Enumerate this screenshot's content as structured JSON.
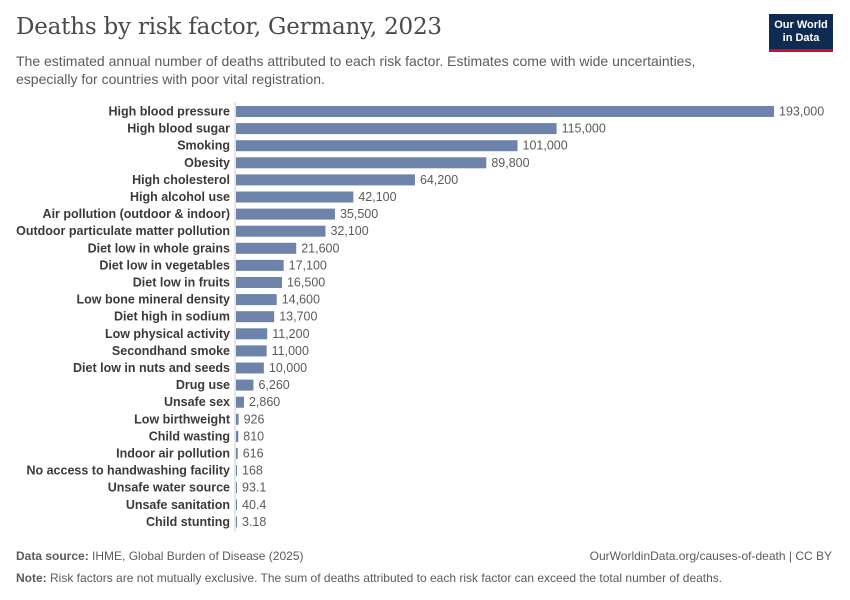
{
  "header": {
    "title": "Deaths by risk factor, Germany, 2023",
    "subtitle": "The estimated annual number of deaths attributed to each risk factor. Estimates come with wide uncertainties, especially for countries with poor vital registration.",
    "logo_line1": "Our World",
    "logo_line2": "in Data"
  },
  "footer": {
    "source_label": "Data source:",
    "source_text": "IHME, Global Burden of Disease (2025)",
    "url_text": "OurWorldinData.org/causes-of-death | CC BY",
    "note_label": "Note:",
    "note_text": "Risk factors are not mutually exclusive. The sum of deaths attributed to each risk factor can exceed the total number of deaths."
  },
  "colors": {
    "bar": "#6d83aa",
    "label": "#3a3a3a",
    "value": "#5b5b5b",
    "axis": "#cccccc"
  },
  "chart_data": {
    "type": "bar",
    "orientation": "horizontal",
    "title": "Deaths by risk factor, Germany, 2023",
    "xlabel": "",
    "ylabel": "",
    "xlim": [
      0,
      193000
    ],
    "categories": [
      "High blood pressure",
      "High blood sugar",
      "Smoking",
      "Obesity",
      "High cholesterol",
      "High alcohol use",
      "Air pollution (outdoor & indoor)",
      "Outdoor particulate matter pollution",
      "Diet low in whole grains",
      "Diet low in vegetables",
      "Diet low in fruits",
      "Low bone mineral density",
      "Diet high in sodium",
      "Low physical activity",
      "Secondhand smoke",
      "Diet low in nuts and seeds",
      "Drug use",
      "Unsafe sex",
      "Low birthweight",
      "Child wasting",
      "Indoor air pollution",
      "No access to handwashing facility",
      "Unsafe water source",
      "Unsafe sanitation",
      "Child stunting"
    ],
    "values": [
      193000,
      115000,
      101000,
      89800,
      64200,
      42100,
      35500,
      32100,
      21600,
      17100,
      16500,
      14600,
      13700,
      11200,
      11000,
      10000,
      6260,
      2860,
      926,
      810,
      616,
      168,
      93.1,
      40.4,
      3.18
    ],
    "value_labels": [
      "193,000",
      "115,000",
      "101,000",
      "89,800",
      "64,200",
      "42,100",
      "35,500",
      "32,100",
      "21,600",
      "17,100",
      "16,500",
      "14,600",
      "13,700",
      "11,200",
      "11,000",
      "10,000",
      "6,260",
      "2,860",
      "926",
      "810",
      "616",
      "168",
      "93.1",
      "40.4",
      "3.18"
    ]
  }
}
